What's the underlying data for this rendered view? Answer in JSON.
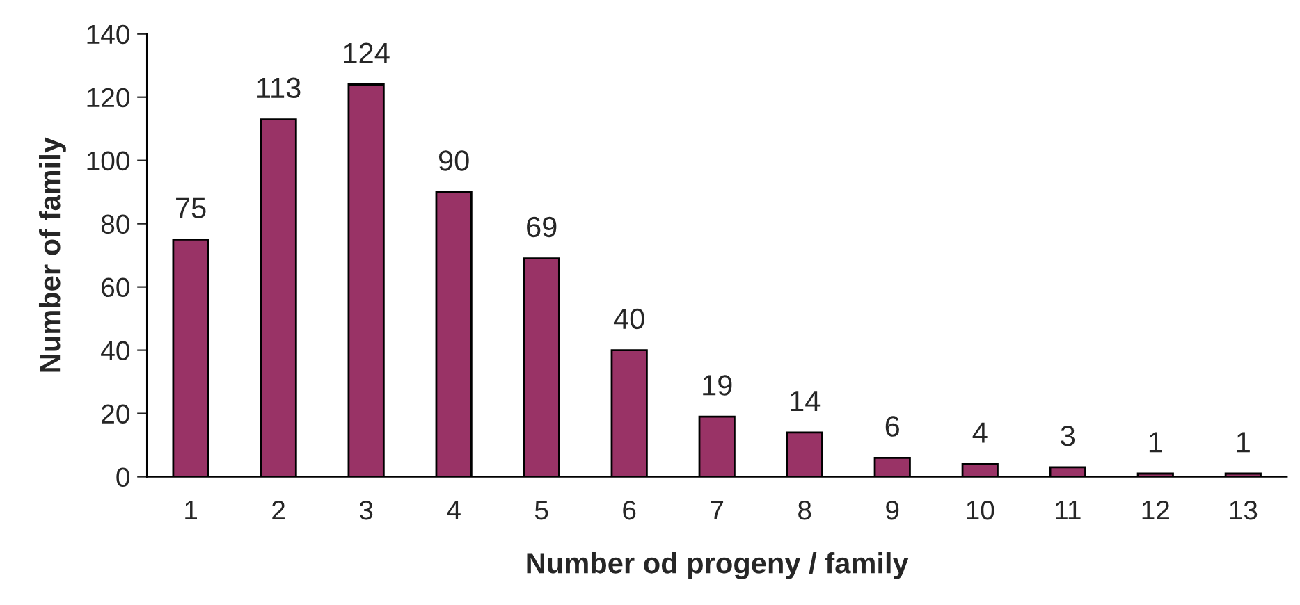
{
  "chart_data": {
    "type": "bar",
    "xlabel": "Number od progeny / family",
    "ylabel": "Number of family",
    "categories": [
      "1",
      "2",
      "3",
      "4",
      "5",
      "6",
      "7",
      "8",
      "9",
      "10",
      "11",
      "12",
      "13"
    ],
    "values": [
      75,
      113,
      124,
      90,
      69,
      40,
      19,
      14,
      6,
      4,
      3,
      1,
      1
    ],
    "color": "#993366",
    "ylim": [
      0,
      140
    ],
    "yticks": [
      0,
      20,
      40,
      60,
      80,
      100,
      120,
      140
    ],
    "data_labels": true,
    "grid": false,
    "legend": false
  }
}
